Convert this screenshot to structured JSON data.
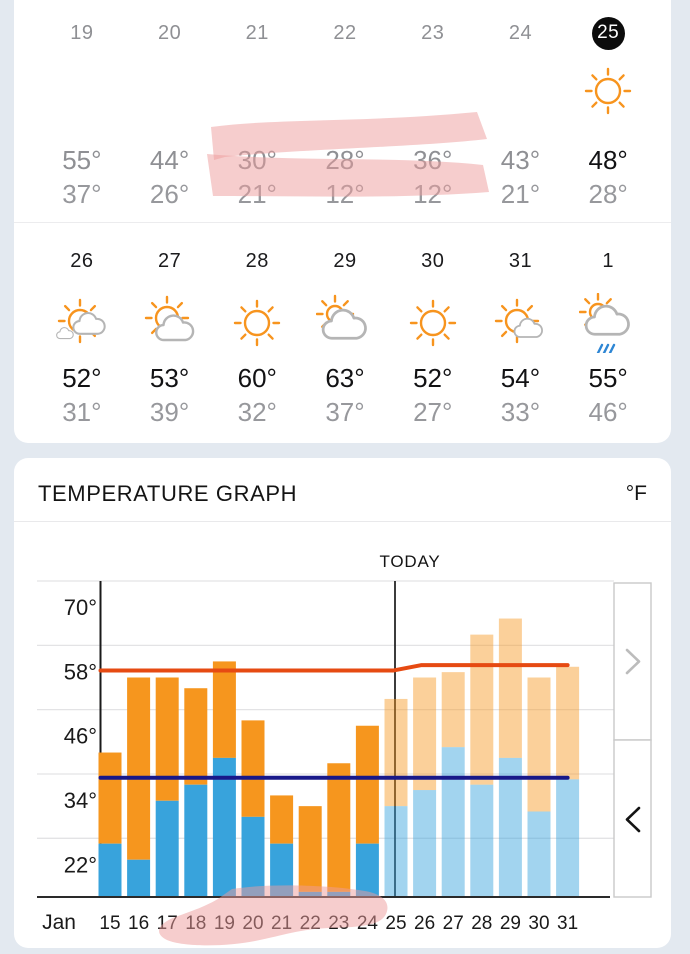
{
  "calendar": {
    "week1": [
      {
        "date": "19",
        "high": "55°",
        "low": "37°",
        "state": "past",
        "icon": "none"
      },
      {
        "date": "20",
        "high": "44°",
        "low": "26°",
        "state": "past",
        "icon": "none"
      },
      {
        "date": "21",
        "high": "30°",
        "low": "21°",
        "state": "past",
        "icon": "none"
      },
      {
        "date": "22",
        "high": "28°",
        "low": "12°",
        "state": "past",
        "icon": "none"
      },
      {
        "date": "23",
        "high": "36°",
        "low": "12°",
        "state": "past",
        "icon": "none"
      },
      {
        "date": "24",
        "high": "43°",
        "low": "21°",
        "state": "past",
        "icon": "none"
      },
      {
        "date": "25",
        "high": "48°",
        "low": "28°",
        "state": "today",
        "icon": "sunny"
      }
    ],
    "week2": [
      {
        "date": "26",
        "high": "52°",
        "low": "31°",
        "state": "forecast",
        "icon": "sun-with-two-clouds"
      },
      {
        "date": "27",
        "high": "53°",
        "low": "39°",
        "state": "forecast",
        "icon": "sun-with-cloud"
      },
      {
        "date": "28",
        "high": "60°",
        "low": "32°",
        "state": "forecast",
        "icon": "sunny"
      },
      {
        "date": "29",
        "high": "63°",
        "low": "37°",
        "state": "forecast",
        "icon": "mostly-cloudy"
      },
      {
        "date": "30",
        "high": "52°",
        "low": "27°",
        "state": "forecast",
        "icon": "sunny"
      },
      {
        "date": "31",
        "high": "54°",
        "low": "33°",
        "state": "forecast",
        "icon": "sun-with-small-cloud"
      },
      {
        "date": "1",
        "high": "55°",
        "low": "46°",
        "state": "forecast",
        "icon": "rain-showers"
      }
    ]
  },
  "graph_card": {
    "title": "TEMPERATURE GRAPH",
    "unit_label": "°F",
    "today_label": "TODAY"
  },
  "chart_data": {
    "type": "bar",
    "title": "TEMPERATURE GRAPH",
    "unit": "°F",
    "month_label": "Jan",
    "days": [
      15,
      16,
      17,
      18,
      19,
      20,
      21,
      22,
      23,
      24,
      25,
      26,
      27,
      28,
      29,
      30,
      31
    ],
    "series": [
      {
        "name": "high",
        "values": [
          38,
          52,
          52,
          50,
          55,
          44,
          30,
          28,
          36,
          43,
          48,
          52,
          53,
          60,
          63,
          52,
          54
        ]
      },
      {
        "name": "low",
        "values": [
          21,
          18,
          29,
          32,
          37,
          26,
          21,
          12,
          12,
          21,
          28,
          31,
          39,
          32,
          37,
          27,
          33
        ]
      }
    ],
    "today_day": 25,
    "forecast_start_day": 25,
    "avg_high_line": {
      "past_value": 53.3,
      "future_value": 54.3,
      "color": "#e64a12"
    },
    "avg_low_line": {
      "value": 33.3,
      "color": "#181889"
    },
    "y_ticks": [
      22,
      34,
      46,
      58,
      70
    ],
    "y_min": 11,
    "y_max": 71.7,
    "grid": true,
    "legend": false,
    "bar_colors": {
      "high": "#f6961e",
      "low": "#38a3dc",
      "high_forecast": "rgba(246,150,30,0.45)",
      "low_forecast": "rgba(57,164,220,0.47)"
    }
  },
  "annotations": {
    "pink_highlights": [
      "marker stroke over week1 highs 30° 28° 36°",
      "marker stroke over week1 lows 21° 12° 12°",
      "marker blob over x-axis days 19-24"
    ],
    "highlight_color": "#ee9c9c"
  }
}
